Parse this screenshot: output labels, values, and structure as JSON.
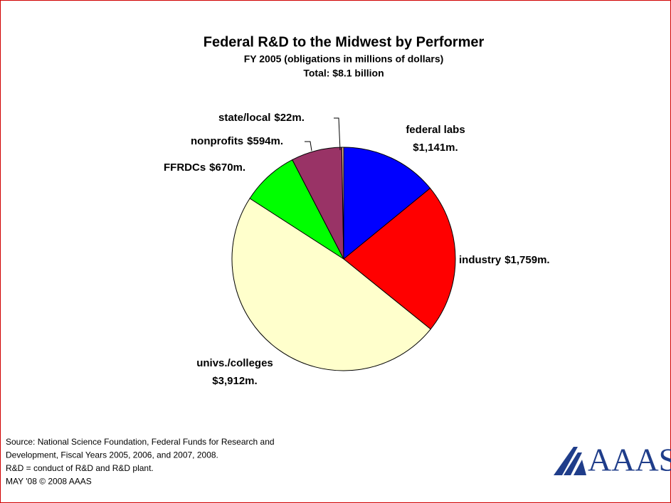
{
  "chart_data": {
    "type": "pie",
    "title": "Federal R&D to the Midwest by Performer",
    "subtitle": "FY 2005 (obligations in millions of dollars)",
    "total": "Total: $8.1 billion",
    "categories": [
      "federal labs",
      "industry",
      "univs./colleges",
      "FFRDCs",
      "nonprofits",
      "state/local"
    ],
    "values": [
      1141,
      1759,
      3912,
      670,
      594,
      22
    ],
    "value_labels": [
      "$1,141m.",
      "$1,759m.",
      "$3,912m.",
      "$670m.",
      "$594m.",
      "$22m."
    ],
    "colors": [
      "#0000ff",
      "#ff0000",
      "#ffffcc",
      "#00ff00",
      "#993366",
      "#ffcc99"
    ],
    "notes": [
      "Source: National Science Foundation, Federal Funds for Research and",
      "Development, Fiscal Years 2005, 2006, and 2007, 2008.",
      "R&D = conduct of R&D and R&D plant.",
      "MAY '08 © 2008 AAAS"
    ],
    "logo": "AAAS"
  }
}
